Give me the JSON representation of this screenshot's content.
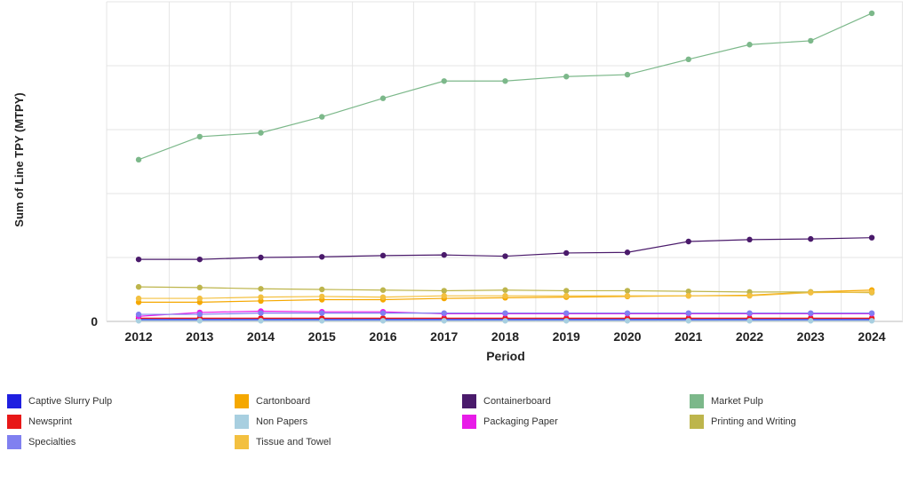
{
  "chart_data": {
    "type": "line",
    "xlabel": "Period",
    "ylabel": "Sum of Line TPY (MTPY)",
    "categories": [
      "2012",
      "2013",
      "2014",
      "2015",
      "2016",
      "2017",
      "2018",
      "2019",
      "2020",
      "2021",
      "2022",
      "2023",
      "2024"
    ],
    "y_tick_labels": [
      "0"
    ],
    "ylim": [
      0,
      50
    ],
    "grid": true,
    "legend_position": "bottom",
    "series": [
      {
        "name": "Captive Slurry Pulp",
        "color": "#1f1fe0",
        "values": [
          0.3,
          0.3,
          0.3,
          0.3,
          0.3,
          0.3,
          0.3,
          0.3,
          0.3,
          0.3,
          0.3,
          0.3,
          0.3
        ]
      },
      {
        "name": "Cartonboard",
        "color": "#f5a800",
        "values": [
          3.0,
          3.0,
          3.2,
          3.4,
          3.4,
          3.6,
          3.7,
          3.8,
          3.9,
          4.0,
          4.1,
          4.6,
          4.9
        ]
      },
      {
        "name": "Containerboard",
        "color": "#4a1a6b",
        "values": [
          9.7,
          9.7,
          10.0,
          10.1,
          10.3,
          10.4,
          10.2,
          10.7,
          10.8,
          12.5,
          12.8,
          12.9,
          13.1
        ]
      },
      {
        "name": "Market Pulp",
        "color": "#7cb88a",
        "values": [
          25.3,
          28.9,
          29.5,
          32.0,
          34.9,
          37.6,
          37.6,
          38.3,
          38.6,
          41.0,
          43.3,
          43.9,
          48.2
        ]
      },
      {
        "name": "Newsprint",
        "color": "#e81818",
        "values": [
          0.5,
          0.5,
          0.5,
          0.5,
          0.5,
          0.5,
          0.5,
          0.5,
          0.5,
          0.5,
          0.5,
          0.5,
          0.5
        ]
      },
      {
        "name": "Non Papers",
        "color": "#a8cfe0",
        "values": [
          0.1,
          0.1,
          0.1,
          0.1,
          0.1,
          0.1,
          0.1,
          0.1,
          0.1,
          0.1,
          0.1,
          0.1,
          0.1
        ]
      },
      {
        "name": "Packaging Paper",
        "color": "#e81ce8",
        "values": [
          0.8,
          1.4,
          1.6,
          1.5,
          1.5,
          1.2,
          1.2,
          1.2,
          1.2,
          1.2,
          1.2,
          1.2,
          1.2
        ]
      },
      {
        "name": "Printing and Writing",
        "color": "#bdb54c",
        "values": [
          5.4,
          5.3,
          5.1,
          5.0,
          4.9,
          4.8,
          4.9,
          4.8,
          4.8,
          4.7,
          4.6,
          4.6,
          4.5
        ]
      },
      {
        "name": "Specialties",
        "color": "#8080f0",
        "values": [
          1.1,
          1.1,
          1.3,
          1.3,
          1.3,
          1.3,
          1.3,
          1.3,
          1.3,
          1.3,
          1.3,
          1.3,
          1.3
        ]
      },
      {
        "name": "Tissue and Towel",
        "color": "#f3c040",
        "values": [
          3.6,
          3.6,
          3.8,
          3.9,
          3.8,
          4.0,
          4.0,
          4.0,
          4.0,
          4.0,
          4.0,
          4.5,
          4.6
        ]
      }
    ]
  },
  "legend": {
    "items": [
      {
        "label": "Captive Slurry Pulp",
        "color": "#1f1fe0"
      },
      {
        "label": "Cartonboard",
        "color": "#f5a800"
      },
      {
        "label": "Containerboard",
        "color": "#4a1a6b"
      },
      {
        "label": "Market Pulp",
        "color": "#7cb88a"
      },
      {
        "label": "Newsprint",
        "color": "#e81818"
      },
      {
        "label": "Non Papers",
        "color": "#a8cfe0"
      },
      {
        "label": "Packaging Paper",
        "color": "#e81ce8"
      },
      {
        "label": "Printing and Writing",
        "color": "#bdb54c"
      },
      {
        "label": "Specialties",
        "color": "#8080f0"
      },
      {
        "label": "Tissue and Towel",
        "color": "#f3c040"
      }
    ]
  }
}
